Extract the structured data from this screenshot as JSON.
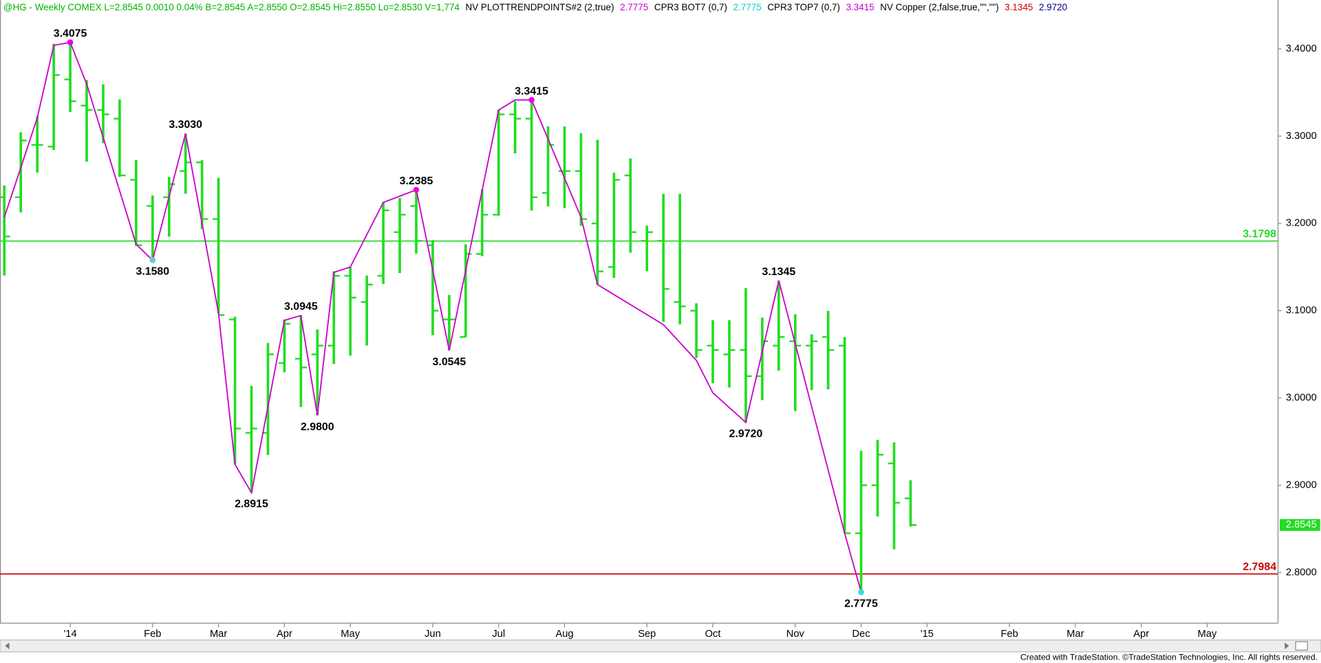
{
  "chart_data": {
    "type": "ohlc",
    "header": [
      {
        "text": "@HG - Weekly  COMEX  L=2.8545  0.0010  0.04%  B=2.8545  A=2.8550  O=2.8545  Hi=2.8550  Lo=2.8530  V=1,774",
        "color": "#00b400"
      },
      {
        "text": "NV  PLOTTRENDPOINTS#2 (2,true)",
        "color": "#000000"
      },
      {
        "text": "2.7775",
        "color": "#cc00cc"
      },
      {
        "text": "CPR3 BOT7 (0,7)",
        "color": "#000000"
      },
      {
        "text": "2.7775",
        "color": "#00cccc"
      },
      {
        "text": "CPR3 TOP7 (0,7)",
        "color": "#000000"
      },
      {
        "text": "3.3415",
        "color": "#cc00cc"
      },
      {
        "text": "NV Copper (2,false,true,\"\",\"\")",
        "color": "#000000"
      },
      {
        "text": "3.1345",
        "color": "#cc0000"
      },
      {
        "text": "2.9720",
        "color": "#000080"
      }
    ],
    "categories": [
      null,
      null,
      null,
      null,
      null,
      null,
      null,
      null,
      null,
      null,
      null,
      null,
      null,
      null,
      null,
      null,
      null,
      null,
      null,
      null,
      null,
      null,
      null,
      null,
      null,
      null,
      null,
      null,
      null,
      null,
      null,
      null,
      null,
      null,
      null,
      null,
      null,
      null,
      null,
      null,
      null,
      null,
      null,
      null,
      null,
      null,
      null,
      null,
      null,
      null,
      null,
      null,
      null,
      null,
      null,
      null
    ],
    "open": [
      3.23,
      3.23,
      3.29,
      3.288,
      3.365,
      3.335,
      3.33,
      3.32,
      3.25,
      3.22,
      3.23,
      3.26,
      3.27,
      3.205,
      3.09,
      2.96,
      2.96,
      3.04,
      3.045,
      3.05,
      3.06,
      3.14,
      3.11,
      3.14,
      3.19,
      3.22,
      3.175,
      3.09,
      3.07,
      3.165,
      3.21,
      3.325,
      3.32,
      3.235,
      3.26,
      3.26,
      3.2,
      3.15,
      3.255,
      3.18,
      3.18,
      3.11,
      3.1,
      3.06,
      3.05,
      3.055,
      3.025,
      3.06,
      3.065,
      3.06,
      3.07,
      3.06,
      2.845,
      2.9,
      2.925,
      2.885
    ],
    "high": [
      3.2436,
      3.3044,
      3.3228,
      3.4058,
      3.4075,
      3.3643,
      3.3595,
      3.3421,
      3.2726,
      3.232,
      3.2533,
      3.303,
      3.2726,
      3.2523,
      3.0931,
      3.0139,
      3.0631,
      3.09,
      3.0945,
      3.0786,
      3.1452,
      3.15,
      3.1403,
      3.2243,
      3.2292,
      3.2385,
      3.1809,
      3.1181,
      3.1761,
      3.2388,
      3.3305,
      3.34,
      3.3415,
      3.3112,
      3.3112,
      3.3035,
      3.2958,
      3.2581,
      3.2745,
      3.1973,
      3.234,
      3.234,
      3.1085,
      3.0892,
      3.0892,
      3.1259,
      3.0921,
      3.1345,
      3.0959,
      3.0728,
      3.0998,
      3.0699,
      2.9396,
      2.9521,
      2.9492,
      2.9058
    ],
    "low": [
      3.1403,
      3.2127,
      3.2581,
      3.2842,
      3.3276,
      3.2707,
      3.2919,
      3.2533,
      3.1741,
      3.158,
      3.1847,
      3.234,
      3.1934,
      3.0969,
      2.9241,
      2.8915,
      2.9347,
      3.0293,
      2.9898,
      2.98,
      3.039,
      3.0486,
      3.0602,
      3.1307,
      3.1432,
      3.1654,
      3.0718,
      3.0545,
      3.0699,
      3.1625,
      3.2089,
      3.2803,
      3.2147,
      3.2195,
      3.2176,
      3.1973,
      3.1297,
      3.1375,
      3.1664,
      3.1452,
      3.0873,
      3.0844,
      3.0458,
      3.0168,
      3.012,
      2.972,
      2.9975,
      3.0313,
      2.985,
      3.0091,
      3.01,
      2.845,
      2.7775,
      2.8643,
      2.8267,
      2.8527
    ],
    "close": [
      3.185,
      3.295,
      3.29,
      3.37,
      3.34,
      3.33,
      3.325,
      3.255,
      3.175,
      3.18,
      3.245,
      3.27,
      3.205,
      3.095,
      2.965,
      2.965,
      3.05,
      3.085,
      3.035,
      3.06,
      3.14,
      3.115,
      3.13,
      3.215,
      3.21,
      3.18,
      3.1,
      3.09,
      3.165,
      3.21,
      3.325,
      3.32,
      3.23,
      3.29,
      3.26,
      3.205,
      3.145,
      3.25,
      3.19,
      3.19,
      3.125,
      3.105,
      3.055,
      3.055,
      3.055,
      3.025,
      3.065,
      3.07,
      3.06,
      3.065,
      3.055,
      2.845,
      2.9,
      2.935,
      2.88,
      2.8545
    ],
    "color": "#22dd22",
    "trend": {
      "color": "#cc00cc",
      "x": [
        0,
        2,
        3,
        4,
        5,
        8,
        9,
        11,
        13,
        14,
        15,
        17,
        18,
        19,
        20,
        21,
        23,
        25,
        27,
        30,
        31,
        32,
        35,
        36,
        40,
        42,
        43,
        45,
        47,
        51,
        52
      ],
      "values": [
        3.207,
        3.321,
        3.404,
        3.4075,
        3.3595,
        3.176,
        3.158,
        3.303,
        3.097,
        2.924,
        2.8915,
        3.089,
        3.0945,
        2.98,
        3.144,
        3.15,
        3.224,
        3.2385,
        3.0545,
        3.33,
        3.3415,
        3.3415,
        3.207,
        3.13,
        3.084,
        3.043,
        3.006,
        2.972,
        3.1345,
        2.845,
        2.7775
      ]
    },
    "markers": [
      {
        "x": 4,
        "value": 3.4075,
        "color": "#e600e6"
      },
      {
        "x": 9,
        "value": 3.158,
        "color": "#66cccc"
      },
      {
        "x": 25,
        "value": 3.2385,
        "color": "#e600e6"
      },
      {
        "x": 32,
        "value": 3.3415,
        "color": "#e600e6"
      },
      {
        "x": 52,
        "value": 2.7775,
        "color": "#33dddd"
      }
    ],
    "annotations": [
      {
        "x": 4,
        "value": 3.4075,
        "label": "3.4075"
      },
      {
        "x": 9,
        "value": 3.158,
        "label": "3.1580"
      },
      {
        "x": 11,
        "value": 3.303,
        "label": "3.3030"
      },
      {
        "x": 15,
        "value": 2.8915,
        "label": "2.8915"
      },
      {
        "x": 18,
        "value": 3.0945,
        "label": "3.0945"
      },
      {
        "x": 19,
        "value": 2.98,
        "label": "2.9800"
      },
      {
        "x": 25,
        "value": 3.2385,
        "label": "3.2385"
      },
      {
        "x": 27,
        "value": 3.0545,
        "label": "3.0545"
      },
      {
        "x": 32,
        "value": 3.3415,
        "label": "3.3415"
      },
      {
        "x": 45,
        "value": 2.972,
        "label": "2.9720"
      },
      {
        "x": 47,
        "value": 3.1345,
        "label": "3.1345"
      },
      {
        "x": 52,
        "value": 2.7775,
        "label": "2.7775"
      }
    ],
    "hlines": [
      {
        "value": 3.1798,
        "color": "#22dd22"
      },
      {
        "value": 2.7984,
        "color": "#cc0000"
      }
    ],
    "last_price": {
      "value": 2.8545,
      "color": "#22dd22"
    },
    "ylim": [
      2.742,
      3.456
    ],
    "yticks": [
      {
        "value": 2.8,
        "label": "2.8000"
      },
      {
        "value": 2.9,
        "label": "2.9000"
      },
      {
        "value": 3.0,
        "label": "3.0000"
      },
      {
        "value": 3.1,
        "label": "3.1000"
      },
      {
        "value": 3.2,
        "label": "3.2000"
      },
      {
        "value": 3.3,
        "label": "3.3000"
      },
      {
        "value": 3.4,
        "label": "3.4000"
      }
    ],
    "xlim": [
      -0.26,
      77.3
    ],
    "xticks": [
      {
        "value": 4,
        "label": "'14"
      },
      {
        "value": 9,
        "label": "Feb"
      },
      {
        "value": 13,
        "label": "Mar"
      },
      {
        "value": 17,
        "label": "Apr"
      },
      {
        "value": 21,
        "label": "May"
      },
      {
        "value": 26,
        "label": "Jun"
      },
      {
        "value": 30,
        "label": "Jul"
      },
      {
        "value": 34,
        "label": "Aug"
      },
      {
        "value": 39,
        "label": "Sep"
      },
      {
        "value": 43,
        "label": "Oct"
      },
      {
        "value": 48,
        "label": "Nov"
      },
      {
        "value": 52,
        "label": "Dec"
      },
      {
        "value": 56,
        "label": "'15"
      },
      {
        "value": 61,
        "label": "Feb"
      },
      {
        "value": 65,
        "label": "Mar"
      },
      {
        "value": 69,
        "label": "Apr"
      },
      {
        "value": 73,
        "label": "May"
      }
    ],
    "footer": "Created with TradeStation. ©TradeStation Technologies, Inc. All rights reserved."
  }
}
